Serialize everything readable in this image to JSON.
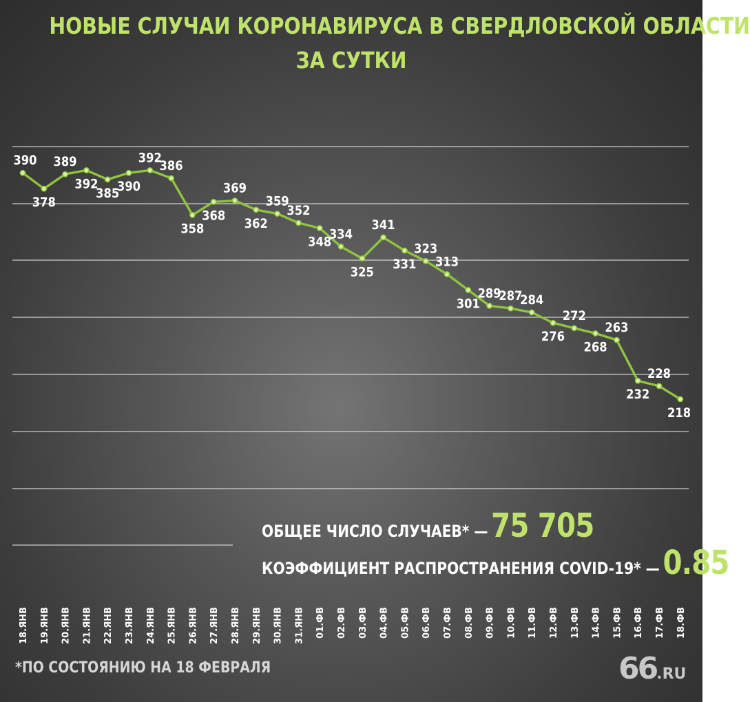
{
  "title": {
    "line1": "НОВЫЕ СЛУЧАИ КОРОНАВИРУСА В СВЕРДЛОВСКОЙ ОБЛАСТИ",
    "line2": "ЗА СУТКИ"
  },
  "stats": {
    "total_label": "ОБЩЕЕ ЧИСЛО СЛУЧАЕВ* —",
    "total_value": "75 705",
    "rate_label": "КОЭФФИЦИЕНТ РАСПРОСТРАНЕНИЯ COVID-19* —",
    "rate_value": "0.85"
  },
  "footnote": "*ПО СОСТОЯНИЮ НА 18 ФЕВРАЛЯ",
  "logo": {
    "number": "66",
    "suffix": ".RU"
  },
  "colors": {
    "accent": "#bfe36a",
    "line": "#8fc43e",
    "gridline": "#e6e6e6",
    "label": "#ffffff"
  },
  "chart_data": {
    "type": "line",
    "title": "НОВЫЕ СЛУЧАИ КОРОНАВИРУСА В СВЕРДЛОВСКОЙ ОБЛАСТИ ЗА СУТКИ",
    "categories": [
      "18.ЯНВ",
      "19.ЯНВ",
      "20.ЯНВ",
      "21.ЯНВ",
      "22.ЯНВ",
      "23.ЯНВ",
      "24.ЯНВ",
      "25.ЯНВ",
      "26.ЯНВ",
      "27.ЯНВ",
      "28.ЯНВ",
      "29.ЯНВ",
      "30.ЯНВ",
      "31.ЯНВ",
      "01.ФВ",
      "02.ФВ",
      "03.ФВ",
      "04.ФВ",
      "05.ФВ",
      "06.ФВ",
      "07.ФВ",
      "08.ФВ",
      "09.ФВ",
      "10.ФВ",
      "11.ФВ",
      "12.ФВ",
      "13.ФВ",
      "14.ФВ",
      "15.ФВ",
      "16.ФВ",
      "17.ФВ",
      "18.ФВ"
    ],
    "values": [
      390,
      378,
      389,
      392,
      385,
      390,
      392,
      386,
      358,
      368,
      369,
      362,
      359,
      352,
      348,
      334,
      325,
      341,
      331,
      323,
      313,
      301,
      289,
      287,
      284,
      276,
      272,
      268,
      263,
      232,
      228,
      218
    ],
    "ylim": [
      150,
      410
    ],
    "grid": true,
    "legend": "none",
    "xlabel": "",
    "ylabel": ""
  }
}
